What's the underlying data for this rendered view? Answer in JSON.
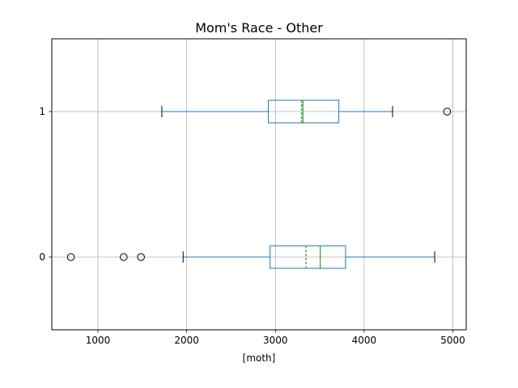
{
  "chart_data": {
    "type": "boxplot",
    "orientation": "horizontal",
    "title": "Mom's Race - Other",
    "xlabel": "[moth]",
    "ylabel": "",
    "xlim": [
      480,
      5150
    ],
    "ylim": [
      -0.5,
      1.5
    ],
    "x_ticks": [
      1000,
      2000,
      3000,
      4000,
      5000
    ],
    "y_ticks": [
      0,
      1
    ],
    "grid": true,
    "colors": {
      "box": "#1f77b4",
      "median": "#2ca02c",
      "mean": "#2ca02c",
      "whisker": "#1f77b4",
      "cap": "#000000",
      "outlier": "#000000",
      "grid": "#b0b0b0"
    },
    "series": [
      {
        "category": "0",
        "whisker_low": 1960,
        "q1": 2940,
        "median": 3505,
        "mean": 3345,
        "q3": 3790,
        "whisker_high": 4795,
        "outliers": [
          695,
          1290,
          1485
        ]
      },
      {
        "category": "1",
        "whisker_low": 1720,
        "q1": 2920,
        "median": 3310,
        "mean": 3295,
        "q3": 3715,
        "whisker_high": 4320,
        "outliers": [
          4935
        ]
      }
    ]
  }
}
